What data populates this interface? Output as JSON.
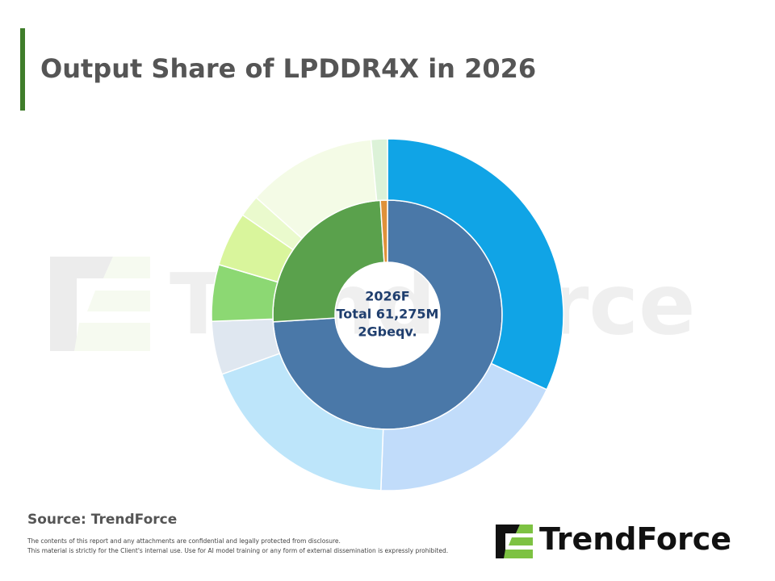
{
  "header": {
    "title": "Output Share of LPDDR4X in 2026"
  },
  "chart_data": {
    "type": "donut",
    "center_labels": [
      "2026F",
      "Total 61,275M",
      "2Gbeqv."
    ],
    "rings": [
      {
        "values": [
          74,
          25,
          1
        ],
        "colors": [
          "#4a78a8",
          "#5aa14c",
          "#e0913a"
        ]
      },
      {
        "values": [
          32,
          18.6,
          18.9,
          4.9,
          5.2,
          5,
          2,
          11.9,
          1.5
        ],
        "colors": [
          "#10a4e6",
          "#c1dcfa",
          "#bde5fa",
          "#dfe7f0",
          "#8cd873",
          "#d9f59c",
          "#eafacd",
          "#f4fbe6",
          "#dcf2d8"
        ]
      }
    ]
  },
  "watermark": "TrendForce",
  "footer": {
    "source": "Source: TrendForce",
    "disclaimer": [
      "The contents of this report and any attachments are confidential and legally protected from disclosure.",
      "This material is strictly for the Client's internal use. Use for AI model training or any form of external dissemination is expressly prohibited."
    ],
    "logo": "TrendForce"
  }
}
